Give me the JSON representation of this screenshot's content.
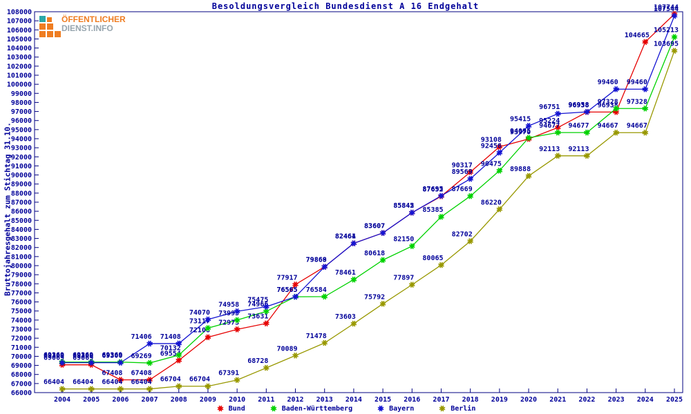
{
  "logo": {
    "line1": "ÖFFENTLICHER",
    "line2": "DIENST.INFO",
    "orange": "#ef7d21",
    "teal": "#2ba8a8",
    "gray": "#97a5ae"
  },
  "chart_data": {
    "type": "line",
    "title": "Besoldungsvergleich Bundesdienst A 16 Endgehalt",
    "ylabel": "Bruttojahresgehalt zum Stichtag 31.10.",
    "xlabel": "",
    "x": [
      2004,
      2005,
      2006,
      2007,
      2008,
      2009,
      2010,
      2011,
      2012,
      2013,
      2014,
      2015,
      2016,
      2017,
      2018,
      2019,
      2020,
      2021,
      2022,
      2023,
      2024,
      2025
    ],
    "ylim": [
      66000,
      108000
    ],
    "ytick_step": 1000,
    "grid": false,
    "legend_position": "bottom",
    "point_labels": true,
    "axis_color": "#000080",
    "label_color": "#000099",
    "series": [
      {
        "name": "Bund",
        "color": "#e60000",
        "values": [
          69069,
          69069,
          67408,
          67408,
          69554,
          72108,
          72973,
          73631,
          77917,
          79868,
          82464,
          83607,
          85842,
          87652,
          90317,
          93108,
          93970,
          95224,
          96938,
          96938,
          104665,
          107744
        ]
      },
      {
        "name": "Baden-Württemberg",
        "color": "#00d200",
        "values": [
          69369,
          69369,
          69369,
          69269,
          70132,
          73117,
          73995,
          74966,
          76565,
          76584,
          78461,
          80618,
          82150,
          85385,
          87669,
          90475,
          94095,
          94677,
          94677,
          97328,
          97328,
          105213
        ]
      },
      {
        "name": "Bayern",
        "color": "#1414d2",
        "values": [
          69300,
          69300,
          69300,
          71406,
          71408,
          74070,
          74958,
          75475,
          76565,
          79869,
          82461,
          83607,
          85845,
          87695,
          89569,
          92456,
          95415,
          96751,
          96958,
          99460,
          99460,
          107544
        ]
      },
      {
        "name": "Berlin",
        "color": "#989800",
        "values": [
          66404,
          66404,
          66404,
          66404,
          66704,
          66704,
          67391,
          68728,
          70089,
          71478,
          73603,
          75792,
          77897,
          80065,
          82702,
          86220,
          89888,
          92113,
          92113,
          94667,
          94667,
          103695
        ]
      }
    ]
  }
}
